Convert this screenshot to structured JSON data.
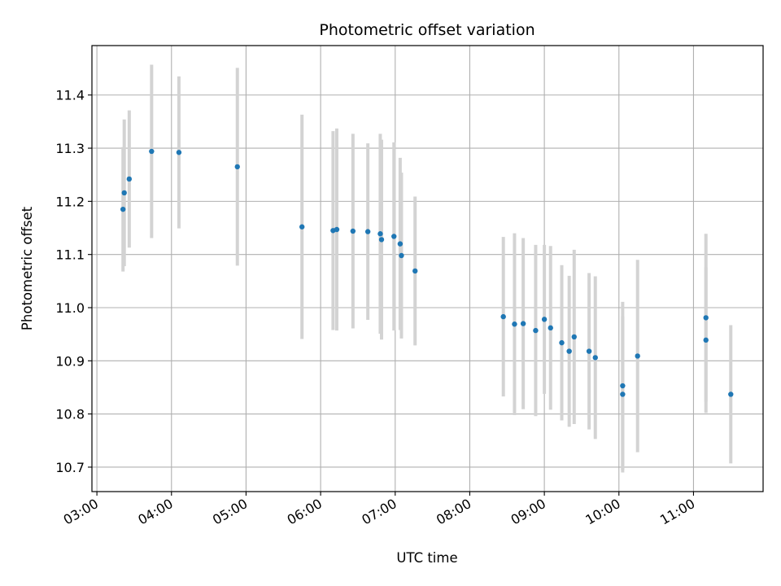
{
  "chart_data": {
    "type": "scatter",
    "title": "Photometric offset variation",
    "xlabel": "UTC time",
    "ylabel": "Photometric offset",
    "x_ticks": [
      "03:00",
      "04:00",
      "05:00",
      "06:00",
      "07:00",
      "08:00",
      "09:00",
      "10:00",
      "11:00"
    ],
    "y_ticks": [
      10.7,
      10.8,
      10.9,
      11.0,
      11.1,
      11.2,
      11.3,
      11.4
    ],
    "y_tick_labels": [
      "10.7",
      "10.8",
      "10.9",
      "11.0",
      "11.1",
      "11.2",
      "11.3",
      "11.4"
    ],
    "xlim": [
      "02:56",
      "11:56"
    ],
    "ylim": [
      10.654,
      11.493
    ],
    "grid": true,
    "marker_color": "#1f77b4",
    "errorbar_color": "#d3d3d3",
    "points": [
      {
        "x": "03:21",
        "y": 11.185,
        "ylow": 11.068,
        "yhigh": 11.302
      },
      {
        "x": "03:22",
        "y": 11.216,
        "ylow": 11.078,
        "yhigh": 11.354
      },
      {
        "x": "03:26",
        "y": 11.242,
        "ylow": 11.113,
        "yhigh": 11.371
      },
      {
        "x": "03:44",
        "y": 11.294,
        "ylow": 11.131,
        "yhigh": 11.457
      },
      {
        "x": "04:06",
        "y": 11.292,
        "ylow": 11.149,
        "yhigh": 11.435
      },
      {
        "x": "04:53",
        "y": 11.265,
        "ylow": 11.079,
        "yhigh": 11.451
      },
      {
        "x": "05:45",
        "y": 11.152,
        "ylow": 10.941,
        "yhigh": 11.363
      },
      {
        "x": "06:10",
        "y": 11.145,
        "ylow": 10.958,
        "yhigh": 11.332
      },
      {
        "x": "06:13",
        "y": 11.147,
        "ylow": 10.957,
        "yhigh": 11.337
      },
      {
        "x": "06:26",
        "y": 11.144,
        "ylow": 10.961,
        "yhigh": 11.327
      },
      {
        "x": "06:38",
        "y": 11.143,
        "ylow": 10.977,
        "yhigh": 11.309
      },
      {
        "x": "06:48",
        "y": 11.139,
        "ylow": 10.951,
        "yhigh": 11.327
      },
      {
        "x": "06:49",
        "y": 11.128,
        "ylow": 10.94,
        "yhigh": 11.316
      },
      {
        "x": "06:59",
        "y": 11.134,
        "ylow": 10.957,
        "yhigh": 11.311
      },
      {
        "x": "07:04",
        "y": 11.12,
        "ylow": 10.958,
        "yhigh": 11.282
      },
      {
        "x": "07:05",
        "y": 11.098,
        "ylow": 10.942,
        "yhigh": 11.254
      },
      {
        "x": "07:16",
        "y": 11.069,
        "ylow": 10.929,
        "yhigh": 11.209
      },
      {
        "x": "08:27",
        "y": 10.983,
        "ylow": 10.833,
        "yhigh": 11.133
      },
      {
        "x": "08:36",
        "y": 10.969,
        "ylow": 10.798,
        "yhigh": 11.14
      },
      {
        "x": "08:43",
        "y": 10.97,
        "ylow": 10.809,
        "yhigh": 11.131
      },
      {
        "x": "08:53",
        "y": 10.957,
        "ylow": 10.796,
        "yhigh": 11.118
      },
      {
        "x": "09:00",
        "y": 10.978,
        "ylow": 10.838,
        "yhigh": 11.118
      },
      {
        "x": "09:05",
        "y": 10.962,
        "ylow": 10.808,
        "yhigh": 11.116
      },
      {
        "x": "09:14",
        "y": 10.934,
        "ylow": 10.788,
        "yhigh": 11.08
      },
      {
        "x": "09:20",
        "y": 10.918,
        "ylow": 10.776,
        "yhigh": 11.06
      },
      {
        "x": "09:24",
        "y": 10.945,
        "ylow": 10.781,
        "yhigh": 11.109
      },
      {
        "x": "09:36",
        "y": 10.918,
        "ylow": 10.771,
        "yhigh": 11.065
      },
      {
        "x": "09:41",
        "y": 10.906,
        "ylow": 10.753,
        "yhigh": 11.059
      },
      {
        "x": "10:03",
        "y": 10.853,
        "ylow": 10.695,
        "yhigh": 11.011
      },
      {
        "x": "10:03",
        "y": 10.837,
        "ylow": 10.69,
        "yhigh": 10.984
      },
      {
        "x": "10:15",
        "y": 10.909,
        "ylow": 10.728,
        "yhigh": 11.09
      },
      {
        "x": "11:10",
        "y": 10.981,
        "ylow": 10.823,
        "yhigh": 11.139
      },
      {
        "x": "11:10",
        "y": 10.939,
        "ylow": 10.802,
        "yhigh": 11.076
      },
      {
        "x": "11:30",
        "y": 10.837,
        "ylow": 10.707,
        "yhigh": 10.967
      }
    ]
  }
}
